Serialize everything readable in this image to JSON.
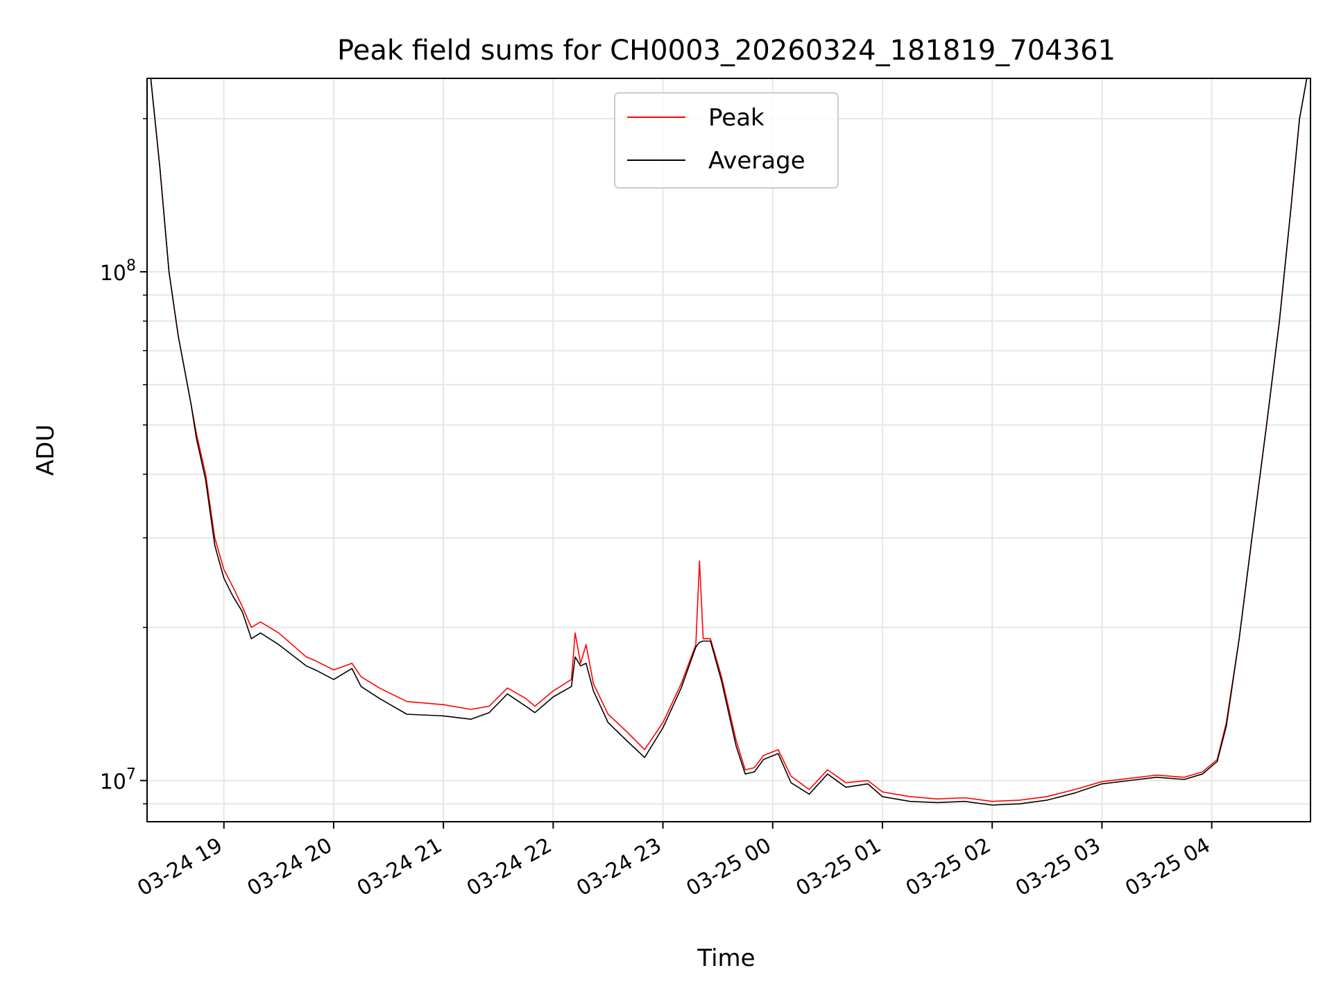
{
  "chart_data": {
    "type": "line",
    "title": "Peak field sums for CH0003_20260324_181819_704361",
    "xlabel": "Time",
    "ylabel": "ADU",
    "y_scale": "log",
    "ylim": [
      8300000,
      240000000
    ],
    "xlim": [
      "2026-03-24 18:18",
      "2026-03-25 04:54"
    ],
    "grid": true,
    "legend_position": "upper center",
    "x_ticks": [
      {
        "label": "03-24 19",
        "x": "2026-03-24 19:00"
      },
      {
        "label": "03-24 20",
        "x": "2026-03-24 20:00"
      },
      {
        "label": "03-24 21",
        "x": "2026-03-24 21:00"
      },
      {
        "label": "03-24 22",
        "x": "2026-03-24 22:00"
      },
      {
        "label": "03-24 23",
        "x": "2026-03-24 23:00"
      },
      {
        "label": "03-25 00",
        "x": "2026-03-25 00:00"
      },
      {
        "label": "03-25 01",
        "x": "2026-03-25 01:00"
      },
      {
        "label": "03-25 02",
        "x": "2026-03-25 02:00"
      },
      {
        "label": "03-25 03",
        "x": "2026-03-25 03:00"
      },
      {
        "label": "03-25 04",
        "x": "2026-03-25 04:00"
      }
    ],
    "y_ticks": [
      {
        "label_base": "10",
        "label_exp": "7",
        "value": 10000000
      },
      {
        "label_base": "10",
        "label_exp": "8",
        "value": 100000000
      }
    ],
    "series": [
      {
        "name": "Peak",
        "color": "#ff0000",
        "points": [
          [
            "2026-03-24 18:20",
            240000000
          ],
          [
            "2026-03-24 18:25",
            160000000
          ],
          [
            "2026-03-24 18:30",
            100000000
          ],
          [
            "2026-03-24 18:35",
            75000000
          ],
          [
            "2026-03-24 18:42",
            55000000
          ],
          [
            "2026-03-24 18:45",
            48000000
          ],
          [
            "2026-03-24 18:50",
            40000000
          ],
          [
            "2026-03-24 18:55",
            30000000
          ],
          [
            "2026-03-24 19:00",
            26000000
          ],
          [
            "2026-03-24 19:05",
            24000000
          ],
          [
            "2026-03-24 19:10",
            22000000
          ],
          [
            "2026-03-24 19:15",
            20000000
          ],
          [
            "2026-03-24 19:20",
            20500000
          ],
          [
            "2026-03-24 19:30",
            19500000
          ],
          [
            "2026-03-24 19:45",
            17500000
          ],
          [
            "2026-03-24 19:50",
            17200000
          ],
          [
            "2026-03-24 20:00",
            16500000
          ],
          [
            "2026-03-24 20:10",
            17000000
          ],
          [
            "2026-03-24 20:15",
            16000000
          ],
          [
            "2026-03-24 20:25",
            15200000
          ],
          [
            "2026-03-24 20:40",
            14300000
          ],
          [
            "2026-03-24 21:00",
            14100000
          ],
          [
            "2026-03-24 21:15",
            13800000
          ],
          [
            "2026-03-24 21:25",
            14000000
          ],
          [
            "2026-03-24 21:35",
            15200000
          ],
          [
            "2026-03-24 21:45",
            14500000
          ],
          [
            "2026-03-24 21:50",
            14000000
          ],
          [
            "2026-03-24 22:00",
            15000000
          ],
          [
            "2026-03-24 22:10",
            15800000
          ],
          [
            "2026-03-24 22:12",
            19500000
          ],
          [
            "2026-03-24 22:15",
            17000000
          ],
          [
            "2026-03-24 22:18",
            18500000
          ],
          [
            "2026-03-24 22:22",
            15500000
          ],
          [
            "2026-03-24 22:30",
            13500000
          ],
          [
            "2026-03-24 22:40",
            12500000
          ],
          [
            "2026-03-24 22:50",
            11500000
          ],
          [
            "2026-03-24 23:00",
            13000000
          ],
          [
            "2026-03-24 23:10",
            15500000
          ],
          [
            "2026-03-24 23:18",
            18500000
          ],
          [
            "2026-03-24 23:20",
            27000000
          ],
          [
            "2026-03-24 23:22",
            19000000
          ],
          [
            "2026-03-24 23:26",
            19000000
          ],
          [
            "2026-03-24 23:32",
            16000000
          ],
          [
            "2026-03-24 23:40",
            12000000
          ],
          [
            "2026-03-24 23:45",
            10500000
          ],
          [
            "2026-03-24 23:50",
            10600000
          ],
          [
            "2026-03-24 23:55",
            11200000
          ],
          [
            "2026-03-25 00:03",
            11500000
          ],
          [
            "2026-03-25 00:10",
            10200000
          ],
          [
            "2026-03-25 00:20",
            9600000
          ],
          [
            "2026-03-25 00:30",
            10500000
          ],
          [
            "2026-03-25 00:40",
            9900000
          ],
          [
            "2026-03-25 00:52",
            10000000
          ],
          [
            "2026-03-25 01:00",
            9500000
          ],
          [
            "2026-03-25 01:15",
            9300000
          ],
          [
            "2026-03-25 01:30",
            9200000
          ],
          [
            "2026-03-25 01:45",
            9250000
          ],
          [
            "2026-03-25 02:00",
            9100000
          ],
          [
            "2026-03-25 02:15",
            9150000
          ],
          [
            "2026-03-25 02:30",
            9300000
          ],
          [
            "2026-03-25 02:45",
            9600000
          ],
          [
            "2026-03-25 03:00",
            9950000
          ],
          [
            "2026-03-25 03:20",
            10150000
          ],
          [
            "2026-03-25 03:30",
            10250000
          ],
          [
            "2026-03-25 03:45",
            10150000
          ],
          [
            "2026-03-25 03:55",
            10400000
          ],
          [
            "2026-03-25 04:03",
            11000000
          ],
          [
            "2026-03-25 04:08",
            13000000
          ],
          [
            "2026-03-25 04:15",
            19000000
          ],
          [
            "2026-03-25 04:22",
            30000000
          ],
          [
            "2026-03-25 04:30",
            50000000
          ],
          [
            "2026-03-25 04:37",
            80000000
          ],
          [
            "2026-03-25 04:43",
            130000000
          ],
          [
            "2026-03-25 04:48",
            200000000
          ],
          [
            "2026-03-25 04:52",
            240000000
          ]
        ]
      },
      {
        "name": "Average",
        "color": "#000000",
        "points": [
          [
            "2026-03-24 18:20",
            240000000
          ],
          [
            "2026-03-24 18:25",
            160000000
          ],
          [
            "2026-03-24 18:30",
            100000000
          ],
          [
            "2026-03-24 18:35",
            75000000
          ],
          [
            "2026-03-24 18:42",
            55000000
          ],
          [
            "2026-03-24 18:45",
            47000000
          ],
          [
            "2026-03-24 18:50",
            39000000
          ],
          [
            "2026-03-24 18:55",
            29000000
          ],
          [
            "2026-03-24 19:00",
            25000000
          ],
          [
            "2026-03-24 19:05",
            23000000
          ],
          [
            "2026-03-24 19:10",
            21500000
          ],
          [
            "2026-03-24 19:15",
            19000000
          ],
          [
            "2026-03-24 19:20",
            19500000
          ],
          [
            "2026-03-24 19:30",
            18500000
          ],
          [
            "2026-03-24 19:45",
            16800000
          ],
          [
            "2026-03-24 19:50",
            16500000
          ],
          [
            "2026-03-24 20:00",
            15800000
          ],
          [
            "2026-03-24 20:10",
            16600000
          ],
          [
            "2026-03-24 20:15",
            15300000
          ],
          [
            "2026-03-24 20:25",
            14500000
          ],
          [
            "2026-03-24 20:40",
            13500000
          ],
          [
            "2026-03-24 21:00",
            13400000
          ],
          [
            "2026-03-24 21:15",
            13200000
          ],
          [
            "2026-03-24 21:25",
            13600000
          ],
          [
            "2026-03-24 21:35",
            14800000
          ],
          [
            "2026-03-24 21:45",
            14000000
          ],
          [
            "2026-03-24 21:50",
            13600000
          ],
          [
            "2026-03-24 22:00",
            14600000
          ],
          [
            "2026-03-24 22:10",
            15300000
          ],
          [
            "2026-03-24 22:12",
            17500000
          ],
          [
            "2026-03-24 22:15",
            16800000
          ],
          [
            "2026-03-24 22:18",
            17000000
          ],
          [
            "2026-03-24 22:22",
            15000000
          ],
          [
            "2026-03-24 22:30",
            13000000
          ],
          [
            "2026-03-24 22:40",
            12000000
          ],
          [
            "2026-03-24 22:50",
            11100000
          ],
          [
            "2026-03-24 23:00",
            12700000
          ],
          [
            "2026-03-24 23:10",
            15200000
          ],
          [
            "2026-03-24 23:18",
            18300000
          ],
          [
            "2026-03-24 23:20",
            18700000
          ],
          [
            "2026-03-24 23:22",
            18800000
          ],
          [
            "2026-03-24 23:26",
            18800000
          ],
          [
            "2026-03-24 23:32",
            15700000
          ],
          [
            "2026-03-24 23:40",
            11700000
          ],
          [
            "2026-03-24 23:45",
            10300000
          ],
          [
            "2026-03-24 23:50",
            10400000
          ],
          [
            "2026-03-24 23:55",
            11000000
          ],
          [
            "2026-03-25 00:03",
            11300000
          ],
          [
            "2026-03-25 00:10",
            9900000
          ],
          [
            "2026-03-25 00:20",
            9400000
          ],
          [
            "2026-03-25 00:30",
            10300000
          ],
          [
            "2026-03-25 00:40",
            9700000
          ],
          [
            "2026-03-25 00:52",
            9850000
          ],
          [
            "2026-03-25 01:00",
            9300000
          ],
          [
            "2026-03-25 01:15",
            9100000
          ],
          [
            "2026-03-25 01:30",
            9050000
          ],
          [
            "2026-03-25 01:45",
            9100000
          ],
          [
            "2026-03-25 02:00",
            8950000
          ],
          [
            "2026-03-25 02:15",
            9000000
          ],
          [
            "2026-03-25 02:30",
            9150000
          ],
          [
            "2026-03-25 02:45",
            9450000
          ],
          [
            "2026-03-25 03:00",
            9850000
          ],
          [
            "2026-03-25 03:20",
            10050000
          ],
          [
            "2026-03-25 03:30",
            10150000
          ],
          [
            "2026-03-25 03:45",
            10050000
          ],
          [
            "2026-03-25 03:55",
            10300000
          ],
          [
            "2026-03-25 04:03",
            10900000
          ],
          [
            "2026-03-25 04:08",
            12800000
          ],
          [
            "2026-03-25 04:15",
            19000000
          ],
          [
            "2026-03-25 04:22",
            30000000
          ],
          [
            "2026-03-25 04:30",
            50000000
          ],
          [
            "2026-03-25 04:37",
            80000000
          ],
          [
            "2026-03-25 04:43",
            130000000
          ],
          [
            "2026-03-25 04:48",
            200000000
          ],
          [
            "2026-03-25 04:52",
            240000000
          ]
        ]
      }
    ]
  }
}
